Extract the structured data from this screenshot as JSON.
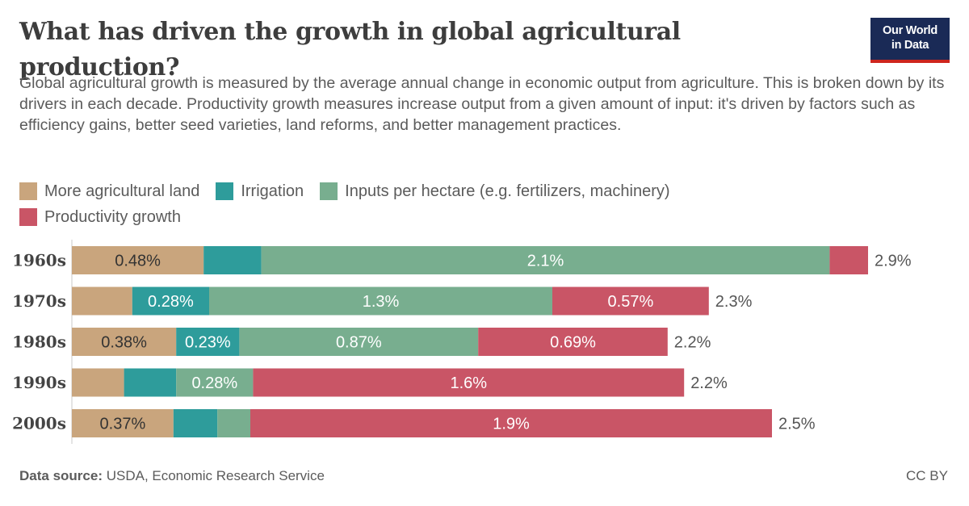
{
  "header": {
    "title": "What has driven the growth in global agricultural production?",
    "subtitle": "Global agricultural growth is measured by the average annual change in economic output from agriculture. This is broken down by its drivers in each decade. Productivity growth measures increase output from a given amount of input: it's driven by factors such as efficiency gains, better seed varieties, land reforms, and better management practices.",
    "logo_line1": "Our World",
    "logo_line2": "in Data"
  },
  "footer": {
    "source_label": "Data source:",
    "source_text": " USDA, Economic Research Service",
    "license": "CC BY"
  },
  "colors": {
    "land": "#c9a57d",
    "irrigation": "#2e9c9b",
    "inputs": "#78ae8f",
    "productivity": "#c95566",
    "logo_bg": "#1a2a56",
    "logo_accent": "#ce261e"
  },
  "chart_data": {
    "type": "bar",
    "orientation": "horizontal",
    "stacked": true,
    "categories": [
      "1960s",
      "1970s",
      "1980s",
      "1990s",
      "2000s"
    ],
    "series": [
      {
        "name": "More agricultural land",
        "color": "#c9a57d",
        "values": [
          0.48,
          0.22,
          0.38,
          0.19,
          0.37
        ],
        "labels": [
          "0.48%",
          "",
          "0.38%",
          "",
          "0.37%"
        ]
      },
      {
        "name": "Irrigation",
        "color": "#2e9c9b",
        "values": [
          0.21,
          0.28,
          0.23,
          0.19,
          0.16
        ],
        "labels": [
          "",
          "0.28%",
          "0.23%",
          "",
          ""
        ]
      },
      {
        "name": "Inputs per hectare (e.g. fertilizers, machinery)",
        "color": "#78ae8f",
        "values": [
          2.07,
          1.25,
          0.87,
          0.28,
          0.12
        ],
        "labels": [
          "2.1%",
          "1.3%",
          "0.87%",
          "0.28%",
          ""
        ]
      },
      {
        "name": "Productivity growth",
        "color": "#c95566",
        "values": [
          0.14,
          0.57,
          0.69,
          1.57,
          1.9
        ],
        "labels": [
          "",
          "0.57%",
          "0.69%",
          "1.6%",
          "1.9%"
        ]
      }
    ],
    "totals": [
      2.9,
      2.3,
      2.2,
      2.2,
      2.5
    ],
    "total_labels": [
      "2.9%",
      "2.3%",
      "2.2%",
      "2.2%",
      "2.5%"
    ],
    "legend_position": "top",
    "grid": false
  }
}
